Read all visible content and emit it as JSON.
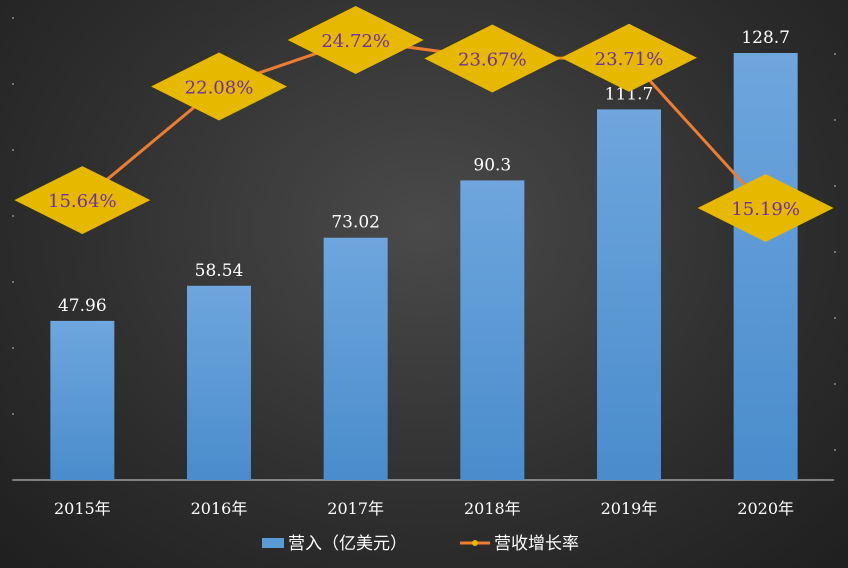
{
  "chart_data": {
    "type": "bar",
    "categories": [
      "2015年",
      "2016年",
      "2017年",
      "2018年",
      "2019年",
      "2020年"
    ],
    "series": [
      {
        "name": "营入（亿美元）",
        "type": "bar",
        "values": [
          47.96,
          58.54,
          73.02,
          90.3,
          111.7,
          128.7
        ],
        "labels": [
          "47.96",
          "58.54",
          "73.02",
          "90.3",
          "111.7",
          "128.7"
        ],
        "color": "#5b9bd5"
      },
      {
        "name": "营收增长率",
        "type": "line",
        "values": [
          15.64,
          22.08,
          24.72,
          23.67,
          23.71,
          15.19
        ],
        "labels": [
          "15.64%",
          "22.08%",
          "24.72%",
          "23.67%",
          "23.71%",
          "15.19%"
        ],
        "color": "#ed7d31",
        "marker_color": "#e6b800",
        "label_color": "#7030a0"
      }
    ],
    "ylim": [
      0,
      140
    ],
    "y2lim": [
      0,
      30
    ],
    "legend_position": "bottom",
    "grid": false
  }
}
